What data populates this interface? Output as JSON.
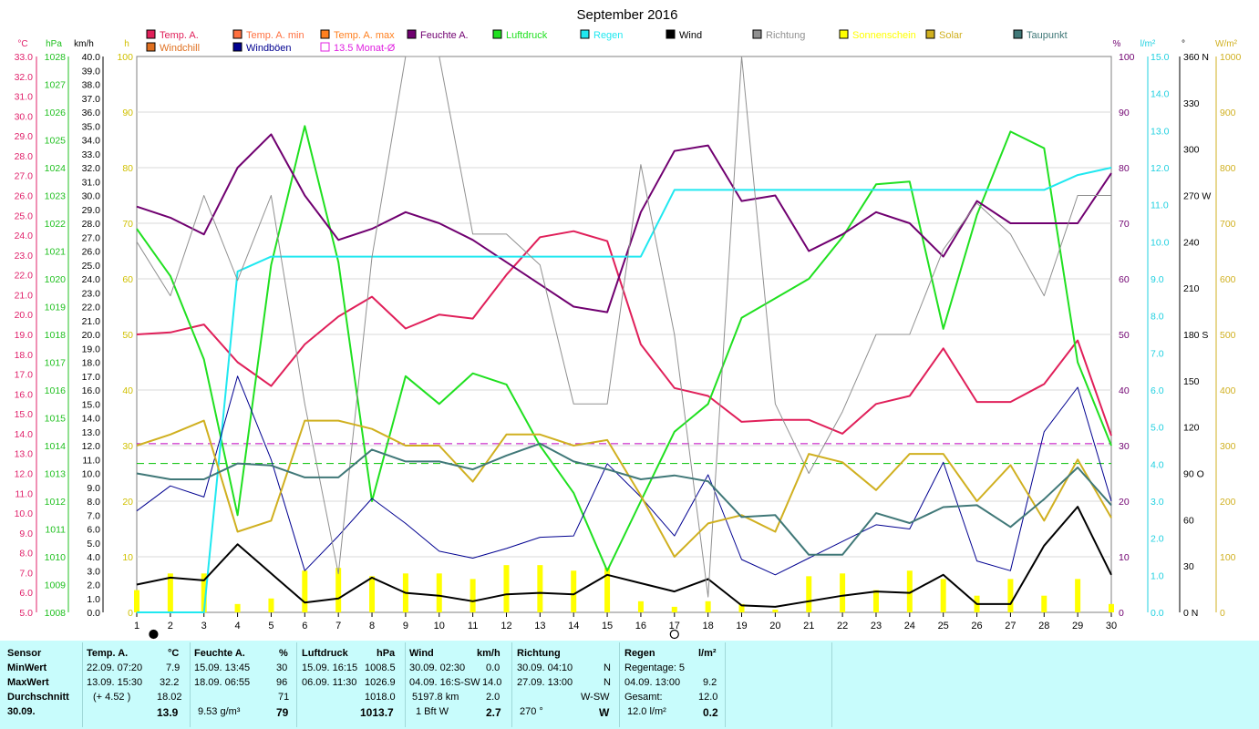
{
  "title": "September 2016",
  "legend": [
    {
      "label": "Temp. A.",
      "color": "#e0205a"
    },
    {
      "label": "Windchill",
      "color": "#e07020"
    },
    {
      "label": "Temp. A. min",
      "color": "#ff7040"
    },
    {
      "label": "Windböen",
      "color": "#000090"
    },
    {
      "label": "Temp. A. max",
      "color": "#ff8020"
    },
    {
      "label": "13.5 Monat-Ø",
      "color": "#e020e0"
    },
    {
      "label": "Feuchte A.",
      "color": "#700070"
    },
    {
      "label": "Luftdruck",
      "color": "#20e020"
    },
    {
      "label": "Regen",
      "color": "#20e8f0"
    },
    {
      "label": "Wind",
      "color": "#000000"
    },
    {
      "label": "Richtung",
      "color": "#909090"
    },
    {
      "label": "Sonnenschein",
      "color": "#ffff00"
    },
    {
      "label": "Solar",
      "color": "#d0b020"
    },
    {
      "label": "Taupunkt",
      "color": "#407878"
    }
  ],
  "axis_units": {
    "temp": "°C",
    "pressure": "hPa",
    "wind": "km/h",
    "sun": "h",
    "hum": "%",
    "rain": "l/m²",
    "dir": "°",
    "solar": "W/m²"
  },
  "chart_data": {
    "type": "line",
    "x": [
      1,
      2,
      3,
      4,
      5,
      6,
      7,
      8,
      9,
      10,
      11,
      12,
      13,
      14,
      15,
      16,
      17,
      18,
      19,
      20,
      21,
      22,
      23,
      24,
      25,
      26,
      27,
      28,
      29,
      30
    ],
    "xlim": [
      1,
      30
    ],
    "axes": {
      "temp": {
        "min": 5.0,
        "max": 33.0,
        "step": 1.0
      },
      "pressure": {
        "min": 1008,
        "max": 1028,
        "step": 1
      },
      "wind": {
        "min": 0.0,
        "max": 40.0,
        "step": 1.0
      },
      "sun": {
        "min": 0,
        "max": 100,
        "step": 10
      },
      "hum": {
        "min": 0,
        "max": 100,
        "step": 10
      },
      "rain": {
        "min": 0.0,
        "max": 15.0,
        "step": 1.0
      },
      "dir": {
        "min": 0,
        "max": 360,
        "ticks": [
          {
            "v": 0,
            "t": "0 N"
          },
          {
            "v": 30,
            "t": "30"
          },
          {
            "v": 60,
            "t": "60"
          },
          {
            "v": 90,
            "t": "90 O"
          },
          {
            "v": 120,
            "t": "120"
          },
          {
            "v": 150,
            "t": "150"
          },
          {
            "v": 180,
            "t": "180 S"
          },
          {
            "v": 210,
            "t": "210"
          },
          {
            "v": 240,
            "t": "240"
          },
          {
            "v": 270,
            "t": "270 W"
          },
          {
            "v": 300,
            "t": "300"
          },
          {
            "v": 330,
            "t": "330"
          },
          {
            "v": 360,
            "t": "360 N"
          }
        ]
      },
      "solar": {
        "min": 0,
        "max": 1000,
        "step": 100
      }
    },
    "series": [
      {
        "name": "Temp. A.",
        "axis": "temp",
        "color": "#e0205a",
        "width": 2,
        "values": [
          19.0,
          19.1,
          19.5,
          17.6,
          16.4,
          18.5,
          19.9,
          20.9,
          19.3,
          20.0,
          19.8,
          22.0,
          23.9,
          24.2,
          23.7,
          18.5,
          16.3,
          15.9,
          14.6,
          14.7,
          14.7,
          14.0,
          15.5,
          15.9,
          18.3,
          15.6,
          15.6,
          16.5,
          18.7,
          13.9
        ]
      },
      {
        "name": "Luftdruck",
        "axis": "pressure",
        "color": "#20e020",
        "width": 2,
        "values": [
          1021.8,
          1020.1,
          1017.1,
          1011.5,
          1020.5,
          1025.5,
          1020.6,
          1012.0,
          1016.5,
          1015.5,
          1016.6,
          1016.2,
          1014.0,
          1012.3,
          1009.5,
          1012.0,
          1014.5,
          1015.5,
          1018.6,
          1019.3,
          1020.0,
          1021.5,
          1023.4,
          1023.5,
          1018.2,
          1022.3,
          1025.3,
          1024.7,
          1017.0,
          1014.0
        ]
      },
      {
        "name": "Feuchte A.",
        "axis": "hum",
        "color": "#700070",
        "width": 2,
        "values": [
          73,
          71,
          68,
          80,
          86,
          75,
          67,
          69,
          72,
          70,
          67,
          63,
          59,
          55,
          54,
          72,
          83,
          84,
          74,
          75,
          65,
          68,
          72,
          70,
          64,
          74,
          70,
          70,
          70,
          79
        ]
      },
      {
        "name": "Regen",
        "axis": "rain",
        "color": "#20e8f0",
        "width": 2,
        "values": [
          0,
          0,
          0,
          9.2,
          9.6,
          9.6,
          9.6,
          9.6,
          9.6,
          9.6,
          9.6,
          9.6,
          9.6,
          9.6,
          9.6,
          9.6,
          11.4,
          11.4,
          11.4,
          11.4,
          11.4,
          11.4,
          11.4,
          11.4,
          11.4,
          11.4,
          11.4,
          11.4,
          11.8,
          12.0
        ]
      },
      {
        "name": "Wind",
        "axis": "wind",
        "color": "#000000",
        "width": 2,
        "values": [
          2.0,
          2.5,
          2.3,
          4.9,
          2.8,
          0.7,
          1.0,
          2.5,
          1.4,
          1.2,
          0.8,
          1.3,
          1.4,
          1.3,
          2.7,
          2.1,
          1.5,
          2.4,
          0.5,
          0.4,
          0.8,
          1.2,
          1.5,
          1.4,
          2.7,
          0.6,
          0.6,
          4.8,
          7.6,
          2.7
        ]
      },
      {
        "name": "Windböen",
        "axis": "wind",
        "color": "#000090",
        "width": 1,
        "values": [
          7.3,
          9.1,
          8.3,
          17.0,
          11.0,
          3.0,
          5.5,
          8.2,
          6.4,
          4.4,
          3.9,
          4.6,
          5.4,
          5.5,
          10.7,
          8.3,
          5.5,
          9.9,
          3.8,
          2.7,
          3.9,
          5.1,
          6.3,
          6.0,
          10.8,
          3.7,
          3.0,
          13.0,
          16.2,
          8.0
        ]
      },
      {
        "name": "Richtung",
        "axis": "dir",
        "color": "#909090",
        "width": 1,
        "values": [
          240,
          205,
          270,
          215,
          270,
          135,
          25,
          230,
          360,
          360,
          245,
          245,
          225,
          135,
          135,
          290,
          180,
          10,
          360,
          135,
          90,
          130,
          180,
          180,
          235,
          265,
          245,
          205,
          270,
          270
        ]
      },
      {
        "name": "Solar",
        "axis": "solar",
        "color": "#d0b020",
        "width": 2,
        "values": [
          300,
          320,
          345,
          145,
          165,
          345,
          345,
          330,
          300,
          300,
          235,
          320,
          320,
          300,
          310,
          210,
          100,
          160,
          175,
          145,
          285,
          270,
          220,
          285,
          285,
          200,
          265,
          165,
          275,
          170
        ]
      },
      {
        "name": "Taupunkt",
        "axis": "temp",
        "color": "#407878",
        "width": 2,
        "values": [
          12.0,
          11.7,
          11.7,
          12.5,
          12.4,
          11.8,
          11.8,
          13.2,
          12.6,
          12.6,
          12.2,
          12.9,
          13.5,
          12.6,
          12.2,
          11.7,
          11.9,
          11.6,
          9.8,
          9.9,
          7.9,
          7.9,
          10.0,
          9.5,
          10.3,
          10.4,
          9.3,
          10.7,
          12.3,
          10.4
        ]
      }
    ],
    "bars": {
      "name": "Sonnenschein",
      "axis": "sun",
      "color": "#ffff00",
      "values": [
        4,
        7,
        7,
        1.5,
        2.5,
        7.5,
        8,
        6.5,
        7,
        7,
        6,
        8.5,
        8.5,
        7.5,
        8,
        2,
        1,
        2,
        1.5,
        0.5,
        6.5,
        7,
        4,
        7.5,
        6,
        3,
        6,
        3,
        6,
        1.5
      ]
    },
    "ref_lines": [
      {
        "axis": "temp",
        "value": 13.5,
        "color": "#c000c0",
        "label": "13.5 Monat-Ø"
      },
      {
        "axis": "temp",
        "value": 12.5,
        "color": "#00c000"
      }
    ],
    "markers": [
      {
        "type": "full-moon",
        "x": 1.5
      },
      {
        "type": "new-moon",
        "x": 17
      }
    ],
    "grid": true,
    "legend_position": "top"
  },
  "stats": {
    "sensor": {
      "header": "Sensor",
      "min": "MinWert",
      "max": "MaxWert",
      "avg": "Durchschnitt",
      "day": "30.09."
    },
    "temp": {
      "header": "Temp. A.",
      "unit": "°C",
      "min_time": "22.09.  07:20",
      "min": "7.9",
      "max_time": "13.09.  15:30",
      "max": "32.2",
      "avg_note": "(+ 4.52 )",
      "avg": "18.02",
      "today": "13.9"
    },
    "hum": {
      "header": "Feuchte A.",
      "unit": "%",
      "min_time": "15.09.  13:45",
      "min": "30",
      "max_time": "18.09.  06:55",
      "max": "96",
      "avg": "71",
      "today_note": "9.53 g/m³",
      "today": "79"
    },
    "pressure": {
      "header": "Luftdruck",
      "unit": "hPa",
      "min_time": "15.09.  16:15",
      "min": "1008.5",
      "max_time": "06.09.  11:30",
      "max": "1026.9",
      "avg": "1018.0",
      "today": "1013.7"
    },
    "wind": {
      "header": "Wind",
      "unit": "km/h",
      "min_time": "30.09.  02:30",
      "min": "0.0",
      "max_time": "04.09.  16:S-SW",
      "max": "14.0",
      "avg_note": "5197.8 km",
      "avg": "2.0",
      "today_note": "1 Bft W",
      "today": "2.7"
    },
    "dir": {
      "header": "Richtung",
      "min_time": "30.09.  04:10",
      "min": "N",
      "max_time": "27.09.  13:00",
      "max": "N",
      "avg": "W-SW",
      "today_note": "270 °",
      "today": "W"
    },
    "rain": {
      "header": "Regen",
      "unit": "l/m²",
      "days": "Regentage: 5",
      "max_time": "04.09.  13:00",
      "max": "9.2",
      "total_label": "Gesamt:",
      "total": "12.0",
      "today_note": "12.0 l/m²",
      "today": "0.2"
    }
  }
}
